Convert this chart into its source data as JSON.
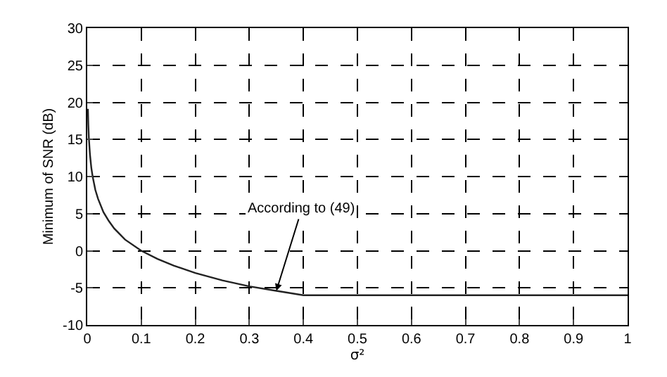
{
  "chart_data": {
    "type": "line",
    "xlabel": "σ²",
    "ylabel": "Minimum of SNR (dB)",
    "x": [
      0,
      0.0013,
      0.002,
      0.003,
      0.005,
      0.0075,
      0.01,
      0.015,
      0.02,
      0.03,
      0.04,
      0.05,
      0.07,
      0.1,
      0.13,
      0.16,
      0.2,
      0.25,
      0.3,
      0.35,
      0.4,
      0.5,
      0.6,
      0.7,
      0.8,
      0.9,
      1
    ],
    "series": [
      {
        "color": "#222222",
        "values": [
          19,
          19,
          17,
          15.2,
          13,
          11.2,
          10,
          8.2,
          7,
          5.2,
          4,
          3,
          1.5,
          0,
          -1.1,
          -2,
          -3,
          -4,
          -4.8,
          -5.4,
          -6,
          -6,
          -6,
          -6,
          -6,
          -6,
          -6
        ]
      }
    ],
    "xlim": [
      0,
      1
    ],
    "xticks": [
      0,
      0.1,
      0.2,
      0.3,
      0.4,
      0.5,
      0.6,
      0.7,
      0.8,
      0.9,
      1
    ],
    "ylim": [
      -10,
      30
    ],
    "yticks": [
      -10,
      -5,
      0,
      5,
      10,
      15,
      20,
      25,
      30
    ],
    "grid": true,
    "marker": "none",
    "line_style": "solid",
    "annotations": [
      {
        "text": "According to (49)",
        "x": 0.35,
        "y": -5.4
      }
    ]
  }
}
